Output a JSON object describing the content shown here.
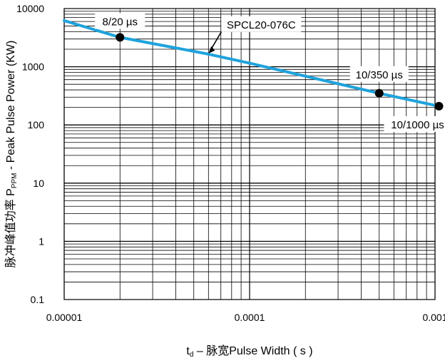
{
  "chart_data": {
    "type": "line",
    "xscale": "log",
    "yscale": "log",
    "xlim": [
      1e-05,
      0.001
    ],
    "ylim": [
      0.1,
      10000
    ],
    "x_ticks": [
      "0.00001",
      "0.0001",
      "0.001"
    ],
    "y_ticks": [
      "0.1",
      "1",
      "10",
      "100",
      "1000",
      "10000"
    ],
    "xlabel": "t",
    "xlabel_sub": "d",
    "xlabel_rest": " – 脉宽Pulse Width ( s )",
    "ylabel": "脉冲峰值功率 P",
    "ylabel_sub": "PPM",
    "ylabel_rest": " - Peak Pulse Power (KW)",
    "grid": true,
    "line_color": "#1fa3dc",
    "series": [
      {
        "x": [
          1e-05,
          2e-05,
          6e-05,
          0.0001,
          0.0005,
          0.00105
        ],
        "y": [
          6200,
          3200,
          1650,
          1150,
          350,
          210
        ]
      }
    ],
    "points": [
      {
        "label": "8/20 µs",
        "x": 2e-05,
        "y": 3200
      },
      {
        "label": "10/350 µs",
        "x": 0.0005,
        "y": 350
      },
      {
        "label": "10/1000 µs",
        "x": 0.00105,
        "y": 210
      }
    ],
    "annotation": {
      "text": "SPCL20-076C",
      "x": 6e-05,
      "y": 1650
    }
  }
}
